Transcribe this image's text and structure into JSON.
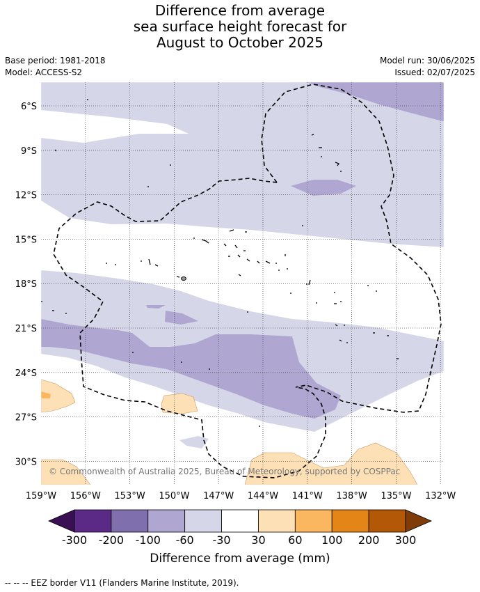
{
  "title_lines": [
    "Difference from average",
    "sea surface height forecast for",
    "August to October 2025"
  ],
  "info": {
    "base_period": "Base period: 1981-2018",
    "model": "Model: ACCESS-S2",
    "model_run": "Model run: 30/06/2025",
    "issued": "Issued: 02/07/2025"
  },
  "map": {
    "lat_labels": [
      "6°S",
      "9°S",
      "12°S",
      "15°S",
      "18°S",
      "21°S",
      "24°S",
      "27°S",
      "30°S"
    ],
    "lon_labels": [
      "159°W",
      "156°W",
      "153°W",
      "150°W",
      "147°W",
      "144°W",
      "141°W",
      "138°W",
      "135°W",
      "132°W"
    ],
    "copyright": "© Commonwealth of Australia 2025, Bureau of Meteorology, supported by COSPPac"
  },
  "colorbar": {
    "title": "Difference from average (mm)",
    "tick_labels": [
      "-300",
      "-200",
      "-100",
      "-60",
      "-30",
      "30",
      "60",
      "100",
      "200",
      "300"
    ],
    "colors": [
      "#3b0f53",
      "#5a2a86",
      "#7f70ad",
      "#afa7d1",
      "#d6d6e9",
      "#ffffff",
      "#fee0b6",
      "#fbb760",
      "#e38617",
      "#b35806",
      "#7f3b08"
    ]
  },
  "footer": "--  --  -- EEZ border V11 (Flanders Marine Institute, 2019)."
}
